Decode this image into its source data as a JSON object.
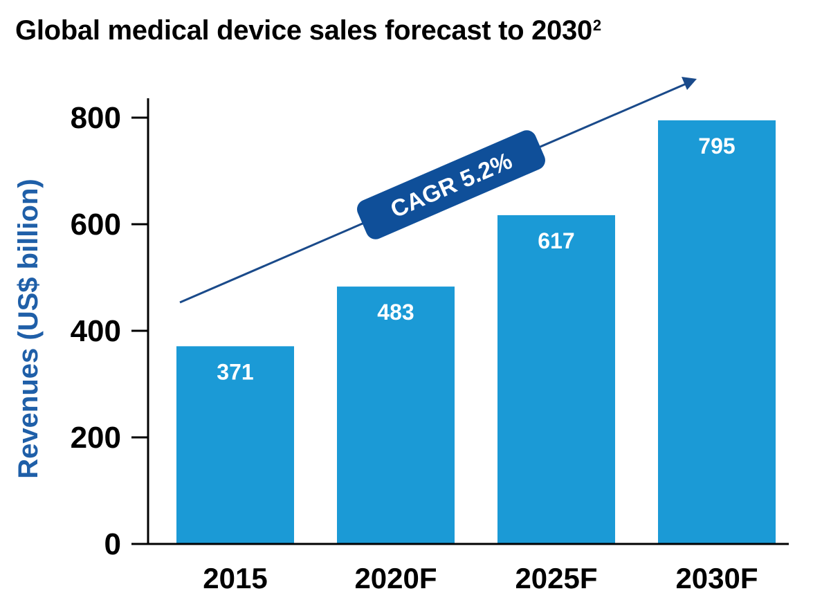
{
  "title": "Global medical device sales forecast to 2030",
  "title_footnote": "2",
  "chart_data": {
    "type": "bar",
    "title": "Global medical device sales forecast to 2030",
    "categories": [
      "2015",
      "2020F",
      "2025F",
      "2030F"
    ],
    "values": [
      371,
      483,
      617,
      795
    ],
    "ylabel": "Revenues (US$ billion)",
    "xlabel": "",
    "ylim": [
      0,
      800
    ],
    "yticks": [
      0,
      200,
      400,
      600,
      800
    ],
    "grid": false,
    "annotation": "CAGR 5.2%",
    "colors": {
      "bar": "#1b9ad6",
      "bar_label": "#ffffff",
      "ylabel": "#1f5fa8",
      "annotation_bg": "#0f4f99",
      "arrow": "#1a4a8a",
      "axis": "#000000"
    }
  }
}
